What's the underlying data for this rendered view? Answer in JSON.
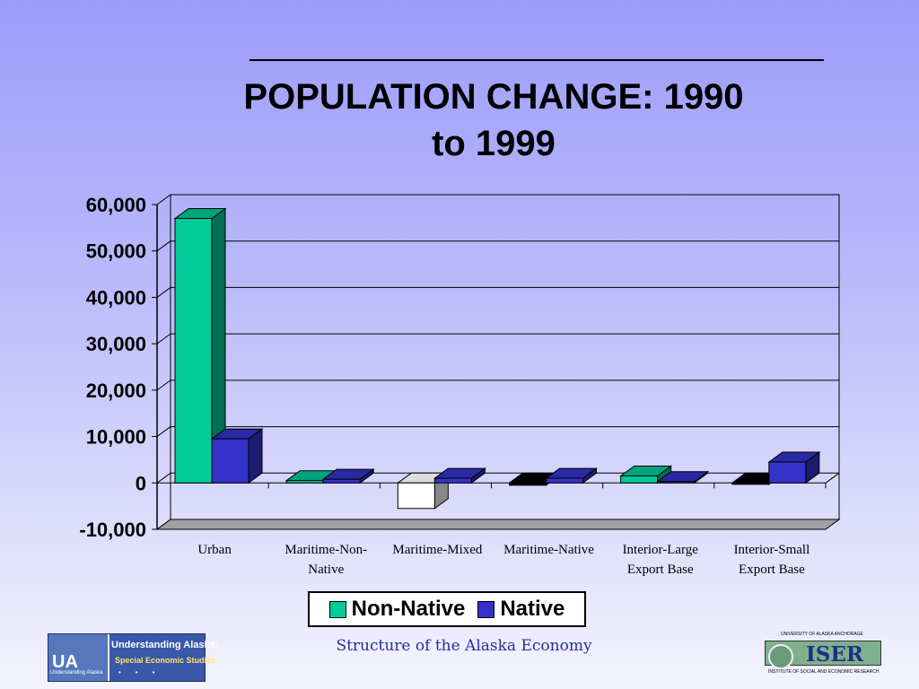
{
  "slide": {
    "title_line1": "POPULATION CHANGE: 1990",
    "title_line2": "to 1999",
    "footer_text": "Structure of the Alaska Economy"
  },
  "logos": {
    "ua": {
      "mark": "UA",
      "subtitle": "Understanding Alaska",
      "line1": "Understanding Alaska:",
      "line2": "Special Economic Studies"
    },
    "iser": {
      "word": "ISER",
      "top_text": "UNIVERSITY OF ALASKA ANCHORAGE",
      "bottom_text": "INSTITUTE OF SOCIAL AND ECONOMIC RESEARCH"
    }
  },
  "colors": {
    "non_native": "#00cc99",
    "native": "#3333cc",
    "negative_fill": "#ffffff"
  },
  "chart_data": {
    "type": "bar",
    "title": "POPULATION CHANGE: 1990 to 1999",
    "categories": [
      [
        "Urban"
      ],
      [
        "Maritime-Non-",
        "Native"
      ],
      [
        "Maritime-Mixed"
      ],
      [
        "Maritime-Native"
      ],
      [
        "Interior-Large",
        "Export Base"
      ],
      [
        "Interior-Small",
        "Export Base"
      ]
    ],
    "series": [
      {
        "name": "Non-Native",
        "values": [
          57000,
          500,
          -5500,
          -500,
          1500,
          -300
        ]
      },
      {
        "name": "Native",
        "values": [
          9500,
          800,
          1000,
          1000,
          300,
          4500
        ]
      }
    ],
    "yticks": [
      "60,000",
      "50,000",
      "40,000",
      "30,000",
      "20,000",
      "10,000",
      "0",
      "-10,000"
    ],
    "ylim": [
      -10000,
      60000
    ],
    "grid": true,
    "legend": "bottom",
    "three_d": true
  }
}
